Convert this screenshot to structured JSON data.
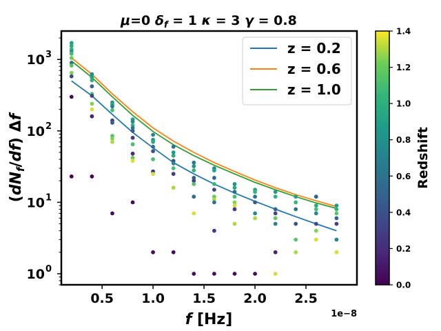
{
  "chart_data": {
    "type": "scatter",
    "title": "μ=0 δ_f = 1 κ = 3 γ = 0.8",
    "title_parts": {
      "mu": "μ",
      "mu_val": "=0 ",
      "delta": "δ",
      "delta_sub": "f",
      "delta_val": " = 1 ",
      "kappa": "κ",
      "kappa_val": " = 3 ",
      "gamma": "γ",
      "gamma_val": " = 0.8"
    },
    "xlabel": {
      "italic": "f",
      "rest": " [Hz]"
    },
    "ylabel": "(dN_f/df) Δf",
    "ylabel_parts": {
      "open": "(",
      "dN": "dN",
      "sub": "f",
      "slash": "/",
      "df": "df",
      "close": ")",
      "delta": " Δ",
      "f": "f"
    },
    "x_offset_label": "1e−8",
    "x_scale": 1e-08,
    "xlim": [
      0.1,
      3.0
    ],
    "ylim": [
      0.7,
      2500
    ],
    "yscale": "log",
    "x_ticks": [
      0.5,
      1.0,
      1.5,
      2.0,
      2.5
    ],
    "x_tick_labels": [
      "0.5",
      "1.0",
      "1.5",
      "2.0",
      "2.5"
    ],
    "y_ticks": [
      1,
      10,
      100,
      1000
    ],
    "y_tick_labels": [
      {
        "base": "10",
        "exp": "0"
      },
      {
        "base": "10",
        "exp": "1"
      },
      {
        "base": "10",
        "exp": "2"
      },
      {
        "base": "10",
        "exp": "3"
      }
    ],
    "colorbar": {
      "label": "Redshift",
      "range": [
        0.0,
        1.4
      ],
      "ticks": [
        0.0,
        0.2,
        0.4,
        0.6,
        0.8,
        1.0,
        1.2,
        1.4
      ],
      "tick_labels": [
        "0.0",
        "0.2",
        "0.4",
        "0.6",
        "0.8",
        "1.0",
        "1.2",
        "1.4"
      ],
      "colormap": "viridis"
    },
    "legend_position": "upper right",
    "series": [
      {
        "name": "z = 0.2",
        "color": "#1f77b4",
        "x": [
          0.2,
          0.4,
          0.6,
          0.8,
          1.0,
          1.2,
          1.4,
          1.6,
          1.8,
          2.0,
          2.2,
          2.4,
          2.6,
          2.8
        ],
        "y": [
          500,
          310,
          170,
          95,
          58,
          36,
          25,
          18,
          13.5,
          10.3,
          8,
          6.3,
          5,
          4
        ]
      },
      {
        "name": "z = 0.6",
        "color": "#ff7f0e",
        "x": [
          0.2,
          0.4,
          0.6,
          0.8,
          1.0,
          1.2,
          1.4,
          1.6,
          1.8,
          2.0,
          2.2,
          2.4,
          2.6,
          2.8
        ],
        "y": [
          1050,
          620,
          330,
          185,
          110,
          72,
          50,
          36,
          27,
          20.5,
          16,
          12.8,
          10.5,
          8.7
        ]
      },
      {
        "name": "z = 1.0",
        "color": "#2ca02c",
        "x": [
          0.2,
          0.4,
          0.6,
          0.8,
          1.0,
          1.2,
          1.4,
          1.6,
          1.8,
          2.0,
          2.2,
          2.4,
          2.6,
          2.8
        ],
        "y": [
          950,
          560,
          300,
          165,
          98,
          64,
          45,
          33,
          25,
          19,
          15,
          12,
          9.8,
          8.2
        ]
      }
    ],
    "points": [
      {
        "x": 0.2,
        "y": 1700,
        "z": 0.9
      },
      {
        "x": 0.2,
        "y": 1550,
        "z": 0.95
      },
      {
        "x": 0.2,
        "y": 1400,
        "z": 1.05
      },
      {
        "x": 0.2,
        "y": 1300,
        "z": 0.8
      },
      {
        "x": 0.2,
        "y": 1200,
        "z": 1.1
      },
      {
        "x": 0.2,
        "y": 1050,
        "z": 1.2
      },
      {
        "x": 0.2,
        "y": 900,
        "z": 0.6
      },
      {
        "x": 0.2,
        "y": 820,
        "z": 1.15
      },
      {
        "x": 0.2,
        "y": 650,
        "z": 1.25
      },
      {
        "x": 0.2,
        "y": 580,
        "z": 0.35
      },
      {
        "x": 0.2,
        "y": 300,
        "z": 0.05
      },
      {
        "x": 0.2,
        "y": 23,
        "z": 0.02
      },
      {
        "x": 0.4,
        "y": 620,
        "z": 0.75
      },
      {
        "x": 0.4,
        "y": 560,
        "z": 0.9
      },
      {
        "x": 0.4,
        "y": 510,
        "z": 1.0
      },
      {
        "x": 0.4,
        "y": 420,
        "z": 0.5
      },
      {
        "x": 0.4,
        "y": 330,
        "z": 1.15
      },
      {
        "x": 0.4,
        "y": 310,
        "z": 0.3
      },
      {
        "x": 0.4,
        "y": 240,
        "z": 1.25
      },
      {
        "x": 0.4,
        "y": 200,
        "z": 1.35
      },
      {
        "x": 0.4,
        "y": 160,
        "z": 0.15
      },
      {
        "x": 0.4,
        "y": 23,
        "z": 0.02
      },
      {
        "x": 0.6,
        "y": 250,
        "z": 0.8
      },
      {
        "x": 0.6,
        "y": 235,
        "z": 0.95
      },
      {
        "x": 0.6,
        "y": 220,
        "z": 0.65
      },
      {
        "x": 0.6,
        "y": 195,
        "z": 1.1
      },
      {
        "x": 0.6,
        "y": 140,
        "z": 0.3
      },
      {
        "x": 0.6,
        "y": 130,
        "z": 0.45
      },
      {
        "x": 0.6,
        "y": 85,
        "z": 1.15
      },
      {
        "x": 0.6,
        "y": 78,
        "z": 1.25
      },
      {
        "x": 0.6,
        "y": 70,
        "z": 1.3
      },
      {
        "x": 0.6,
        "y": 7,
        "z": 0.05
      },
      {
        "x": 0.8,
        "y": 145,
        "z": 0.9
      },
      {
        "x": 0.8,
        "y": 135,
        "z": 0.75
      },
      {
        "x": 0.8,
        "y": 120,
        "z": 1.0
      },
      {
        "x": 0.8,
        "y": 110,
        "z": 0.6
      },
      {
        "x": 0.8,
        "y": 100,
        "z": 0.45
      },
      {
        "x": 0.8,
        "y": 80,
        "z": 0.3
      },
      {
        "x": 0.8,
        "y": 65,
        "z": 1.1
      },
      {
        "x": 0.8,
        "y": 48,
        "z": 0.2
      },
      {
        "x": 0.8,
        "y": 42,
        "z": 1.2
      },
      {
        "x": 0.8,
        "y": 38,
        "z": 1.35
      },
      {
        "x": 0.8,
        "y": 10,
        "z": 0.05
      },
      {
        "x": 1.0,
        "y": 88,
        "z": 0.7
      },
      {
        "x": 1.0,
        "y": 75,
        "z": 0.85
      },
      {
        "x": 1.0,
        "y": 70,
        "z": 0.95
      },
      {
        "x": 1.0,
        "y": 60,
        "z": 0.55
      },
      {
        "x": 1.0,
        "y": 52,
        "z": 0.4
      },
      {
        "x": 1.0,
        "y": 40,
        "z": 1.1
      },
      {
        "x": 1.0,
        "y": 27,
        "z": 0.2
      },
      {
        "x": 1.0,
        "y": 25,
        "z": 1.35
      },
      {
        "x": 1.0,
        "y": 2,
        "z": 0.05
      },
      {
        "x": 1.2,
        "y": 60,
        "z": 0.6
      },
      {
        "x": 1.2,
        "y": 50,
        "z": 0.85
      },
      {
        "x": 1.2,
        "y": 45,
        "z": 0.95
      },
      {
        "x": 1.2,
        "y": 38,
        "z": 0.4
      },
      {
        "x": 1.2,
        "y": 35,
        "z": 0.75
      },
      {
        "x": 1.2,
        "y": 30,
        "z": 1.1
      },
      {
        "x": 1.2,
        "y": 25,
        "z": 0.3
      },
      {
        "x": 1.2,
        "y": 16,
        "z": 1.3
      },
      {
        "x": 1.2,
        "y": 2,
        "z": 0.05
      },
      {
        "x": 1.4,
        "y": 36,
        "z": 0.65
      },
      {
        "x": 1.4,
        "y": 32,
        "z": 0.8
      },
      {
        "x": 1.4,
        "y": 28,
        "z": 1.0
      },
      {
        "x": 1.4,
        "y": 22,
        "z": 0.45
      },
      {
        "x": 1.4,
        "y": 20,
        "z": 0.3
      },
      {
        "x": 1.4,
        "y": 18,
        "z": 1.15
      },
      {
        "x": 1.4,
        "y": 12,
        "z": 0.55
      },
      {
        "x": 1.4,
        "y": 7,
        "z": 1.35
      },
      {
        "x": 1.4,
        "y": 1,
        "z": 0.05
      },
      {
        "x": 1.6,
        "y": 30,
        "z": 0.75
      },
      {
        "x": 1.6,
        "y": 28,
        "z": 0.9
      },
      {
        "x": 1.6,
        "y": 22,
        "z": 0.5
      },
      {
        "x": 1.6,
        "y": 18,
        "z": 1.05
      },
      {
        "x": 1.6,
        "y": 15,
        "z": 0.35
      },
      {
        "x": 1.6,
        "y": 12,
        "z": 1.2
      },
      {
        "x": 1.6,
        "y": 11,
        "z": 1.3
      },
      {
        "x": 1.6,
        "y": 10,
        "z": 0.6
      },
      {
        "x": 1.6,
        "y": 4,
        "z": 0.25
      },
      {
        "x": 1.6,
        "y": 1,
        "z": 0.05
      },
      {
        "x": 1.8,
        "y": 18,
        "z": 0.8
      },
      {
        "x": 1.8,
        "y": 16,
        "z": 0.95
      },
      {
        "x": 1.8,
        "y": 14,
        "z": 0.55
      },
      {
        "x": 1.8,
        "y": 12,
        "z": 1.1
      },
      {
        "x": 1.8,
        "y": 10,
        "z": 1.25
      },
      {
        "x": 1.8,
        "y": 9,
        "z": 1.35
      },
      {
        "x": 1.8,
        "y": 8,
        "z": 0.3
      },
      {
        "x": 1.8,
        "y": 5,
        "z": 1.3
      },
      {
        "x": 1.8,
        "y": 1,
        "z": 0.05
      },
      {
        "x": 2.0,
        "y": 15,
        "z": 0.9
      },
      {
        "x": 2.0,
        "y": 14,
        "z": 1.05
      },
      {
        "x": 2.0,
        "y": 12,
        "z": 0.6
      },
      {
        "x": 2.0,
        "y": 10,
        "z": 0.45
      },
      {
        "x": 2.0,
        "y": 7,
        "z": 0.75
      },
      {
        "x": 2.0,
        "y": 6,
        "z": 1.3
      },
      {
        "x": 2.0,
        "y": 1,
        "z": 0.05
      },
      {
        "x": 2.2,
        "y": 14,
        "z": 0.85
      },
      {
        "x": 2.2,
        "y": 12,
        "z": 1.0
      },
      {
        "x": 2.2,
        "y": 8,
        "z": 0.5
      },
      {
        "x": 2.2,
        "y": 7,
        "z": 0.35
      },
      {
        "x": 2.2,
        "y": 6,
        "z": 1.2
      },
      {
        "x": 2.2,
        "y": 5,
        "z": 0.7
      },
      {
        "x": 2.2,
        "y": 2,
        "z": 0.15
      },
      {
        "x": 2.2,
        "y": 1,
        "z": 1.35
      },
      {
        "x": 2.4,
        "y": 12,
        "z": 0.9
      },
      {
        "x": 2.4,
        "y": 10,
        "z": 1.05
      },
      {
        "x": 2.4,
        "y": 8,
        "z": 0.6
      },
      {
        "x": 2.4,
        "y": 5,
        "z": 0.4
      },
      {
        "x": 2.4,
        "y": 3,
        "z": 1.15
      },
      {
        "x": 2.4,
        "y": 2,
        "z": 1.3
      },
      {
        "x": 2.6,
        "y": 12,
        "z": 0.5
      },
      {
        "x": 2.6,
        "y": 9,
        "z": 0.95
      },
      {
        "x": 2.6,
        "y": 8,
        "z": 1.1
      },
      {
        "x": 2.6,
        "y": 7,
        "z": 0.75
      },
      {
        "x": 2.6,
        "y": 5,
        "z": 0.35
      },
      {
        "x": 2.6,
        "y": 4,
        "z": 1.25
      },
      {
        "x": 2.6,
        "y": 3,
        "z": 1.35
      },
      {
        "x": 2.8,
        "y": 9,
        "z": 0.85
      },
      {
        "x": 2.8,
        "y": 8,
        "z": 1.0
      },
      {
        "x": 2.8,
        "y": 7,
        "z": 1.15
      },
      {
        "x": 2.8,
        "y": 6,
        "z": 0.5
      },
      {
        "x": 2.8,
        "y": 5,
        "z": 0.3
      },
      {
        "x": 2.8,
        "y": 3,
        "z": 0.7
      },
      {
        "x": 2.8,
        "y": 2,
        "z": 1.35
      }
    ]
  }
}
